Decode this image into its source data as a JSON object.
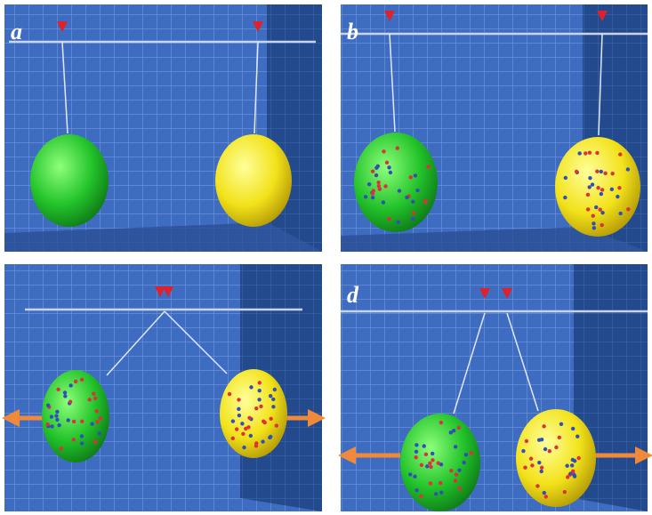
{
  "labels": [
    "a",
    "b",
    "d"
  ]
}
